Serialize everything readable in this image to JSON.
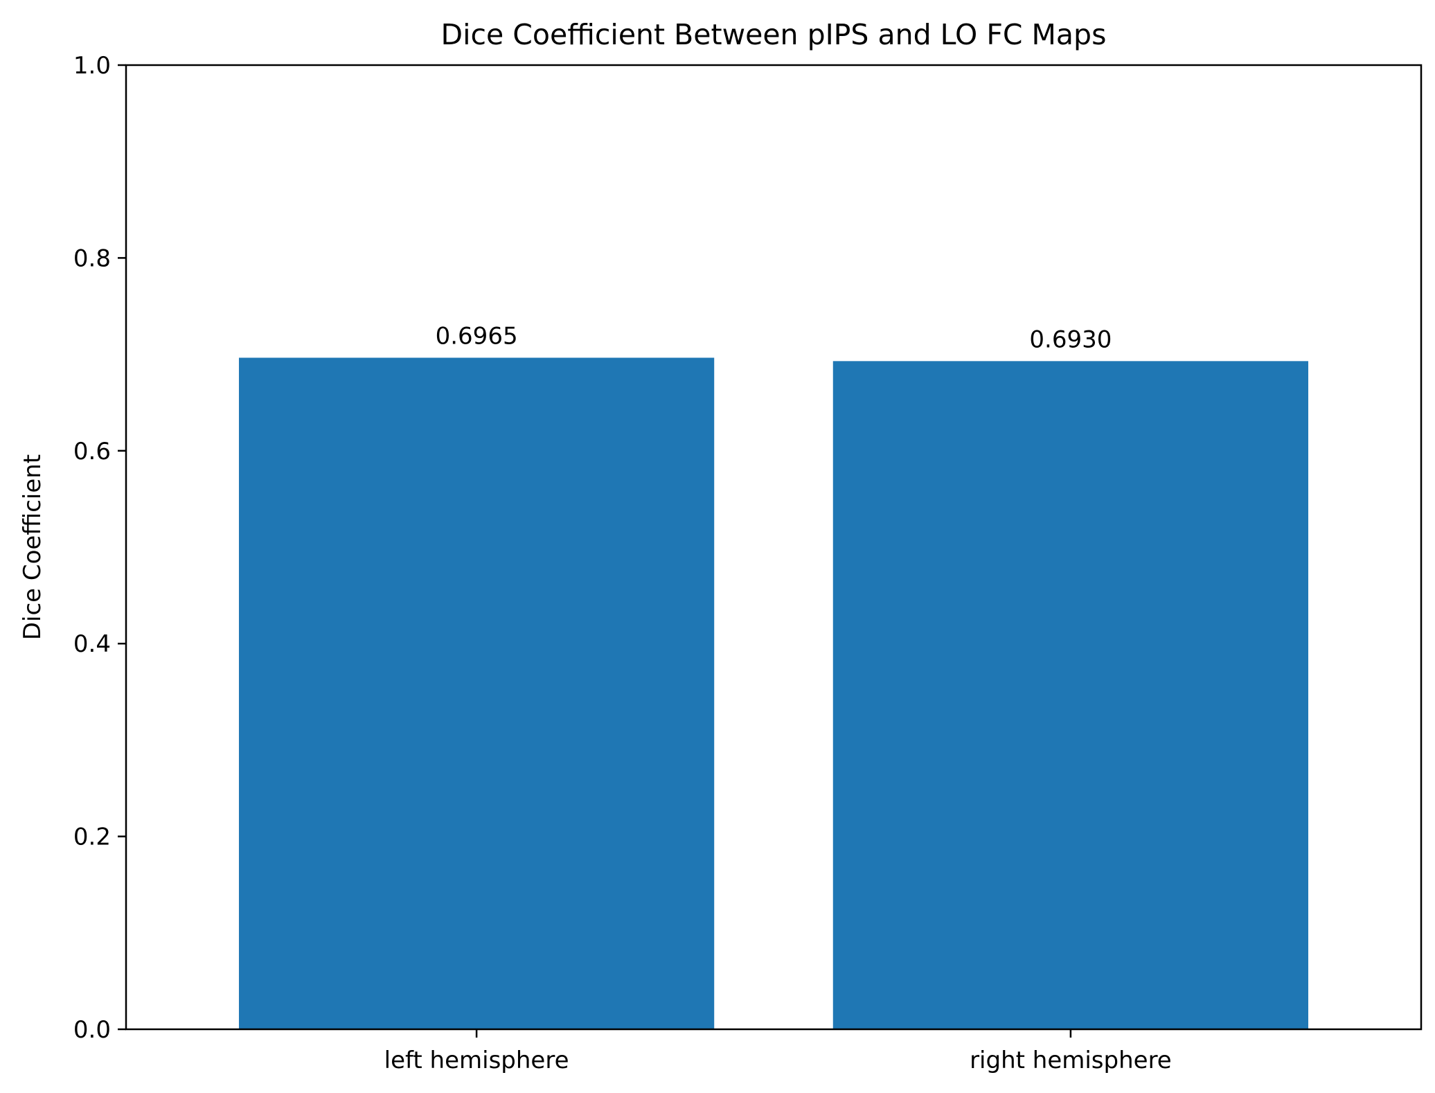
{
  "chart_data": {
    "type": "bar",
    "title": "Dice Coefficient Between pIPS and LO FC Maps",
    "xlabel": "",
    "ylabel": "Dice Coefficient",
    "categories": [
      "left hemisphere",
      "right hemisphere"
    ],
    "values": [
      0.6965,
      0.693
    ],
    "data_labels": [
      "0.6965",
      "0.6930"
    ],
    "ylim": [
      0,
      1.0
    ],
    "yticks": [
      0.0,
      0.2,
      0.4,
      0.6,
      0.8,
      1.0
    ],
    "ytick_labels": [
      "0.0",
      "0.2",
      "0.4",
      "0.6",
      "0.8",
      "1.0"
    ],
    "bar_color": "#1f77b4",
    "grid": false,
    "legend": "none"
  }
}
